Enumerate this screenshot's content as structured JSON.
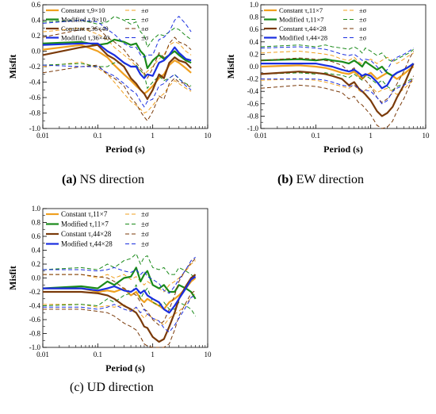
{
  "colors": {
    "constant_small": "#f0a020",
    "modified_small": "#1a8a1a",
    "constant_large": "#7a3a0a",
    "modified_large": "#1a2ee0"
  },
  "captions": [
    {
      "letter": "(a)",
      "text": " NS direction"
    },
    {
      "letter": "(b)",
      "text": " EW direction"
    },
    {
      "letter": "(c)",
      "text": " UD direction"
    }
  ],
  "chart_data": [
    {
      "type": "line",
      "panel": "a",
      "xlabel": "Period (s)",
      "ylabel": "Misfit",
      "xscale": "log",
      "xlim": [
        0.01,
        10
      ],
      "ylim": [
        -1.0,
        0.6
      ],
      "xticks": [
        "0.01",
        "0.1",
        "1",
        "10"
      ],
      "yticks": [
        "-1.0",
        "-0.8",
        "-0.6",
        "-0.4",
        "-0.2",
        "0.0",
        "0.2",
        "0.4",
        "0.6"
      ],
      "legend_position": "top-left",
      "legend": [
        {
          "label": "Constant τ,9×10",
          "sigma_label": "±σ",
          "color_key": "constant_small"
        },
        {
          "label": "Modified τ,9×10",
          "sigma_label": "±σ",
          "color_key": "modified_small"
        },
        {
          "label": "Constant τ,36×40",
          "sigma_label": "±σ",
          "color_key": "constant_large"
        },
        {
          "label": "Modified τ,36×40",
          "sigma_label": "±σ",
          "color_key": "modified_large"
        }
      ],
      "x": [
        0.01,
        0.05,
        0.1,
        0.15,
        0.2,
        0.3,
        0.4,
        0.5,
        0.6,
        0.7,
        0.8,
        1.0,
        1.3,
        1.6,
        2.0,
        2.5,
        3.0,
        4.0,
        5.0
      ],
      "series": [
        {
          "name": "Constant τ,9×10",
          "color_key": "constant_small",
          "mean": [
            0.02,
            0.08,
            0.0,
            -0.08,
            -0.18,
            -0.3,
            -0.38,
            -0.45,
            -0.5,
            -0.55,
            -0.52,
            -0.45,
            -0.35,
            -0.3,
            -0.18,
            -0.12,
            -0.15,
            -0.22,
            -0.28
          ],
          "upper": [
            0.25,
            0.3,
            0.22,
            0.15,
            0.05,
            -0.05,
            -0.12,
            -0.2,
            -0.25,
            -0.3,
            -0.26,
            -0.2,
            -0.1,
            -0.05,
            0.08,
            0.12,
            0.1,
            0.0,
            -0.05
          ],
          "lower": [
            -0.2,
            -0.14,
            -0.22,
            -0.3,
            -0.4,
            -0.55,
            -0.65,
            -0.7,
            -0.75,
            -0.8,
            -0.78,
            -0.7,
            -0.6,
            -0.55,
            -0.45,
            -0.38,
            -0.42,
            -0.48,
            -0.52
          ]
        },
        {
          "name": "Modified τ,9×10",
          "color_key": "modified_small",
          "mean": [
            0.1,
            0.12,
            0.08,
            0.1,
            0.15,
            0.12,
            0.08,
            0.1,
            0.0,
            -0.05,
            -0.22,
            -0.12,
            -0.05,
            -0.1,
            -0.05,
            0.0,
            -0.05,
            -0.12,
            -0.15
          ],
          "upper": [
            0.38,
            0.4,
            0.35,
            0.38,
            0.45,
            0.4,
            0.35,
            0.38,
            0.25,
            0.2,
            0.05,
            0.15,
            0.22,
            0.2,
            0.25,
            0.3,
            0.28,
            0.2,
            0.15
          ],
          "lower": [
            -0.18,
            -0.16,
            -0.2,
            -0.2,
            -0.15,
            -0.16,
            -0.2,
            -0.18,
            -0.25,
            -0.3,
            -0.48,
            -0.4,
            -0.32,
            -0.38,
            -0.35,
            -0.3,
            -0.36,
            -0.42,
            -0.45
          ]
        },
        {
          "name": "Constant τ,36×40",
          "color_key": "constant_large",
          "mean": [
            -0.05,
            0.05,
            0.08,
            -0.05,
            -0.1,
            -0.2,
            -0.35,
            -0.42,
            -0.5,
            -0.55,
            -0.62,
            -0.5,
            -0.3,
            -0.35,
            -0.15,
            -0.08,
            -0.12,
            -0.15,
            -0.22
          ],
          "upper": [
            0.18,
            0.28,
            0.3,
            0.18,
            0.12,
            0.02,
            -0.1,
            -0.15,
            -0.22,
            -0.28,
            -0.35,
            -0.22,
            -0.02,
            -0.08,
            0.1,
            0.18,
            0.12,
            0.08,
            0.02
          ],
          "lower": [
            -0.28,
            -0.2,
            -0.18,
            -0.3,
            -0.35,
            -0.45,
            -0.6,
            -0.68,
            -0.78,
            -0.85,
            -0.9,
            -0.78,
            -0.58,
            -0.62,
            -0.42,
            -0.35,
            -0.4,
            -0.42,
            -0.48
          ]
        },
        {
          "name": "Modified τ,36×40",
          "color_key": "modified_large",
          "mean": [
            0.08,
            0.1,
            0.1,
            0.0,
            -0.05,
            -0.15,
            -0.2,
            -0.2,
            -0.3,
            -0.35,
            -0.3,
            -0.32,
            -0.15,
            -0.12,
            -0.05,
            0.05,
            -0.02,
            -0.1,
            -0.12
          ],
          "upper": [
            0.36,
            0.4,
            0.38,
            0.28,
            0.22,
            0.1,
            0.05,
            0.05,
            -0.05,
            -0.08,
            -0.05,
            -0.05,
            0.15,
            0.18,
            0.25,
            0.4,
            0.45,
            0.35,
            0.25
          ],
          "lower": [
            -0.18,
            -0.2,
            -0.2,
            -0.28,
            -0.32,
            -0.42,
            -0.5,
            -0.55,
            -0.65,
            -0.72,
            -0.65,
            -0.62,
            -0.45,
            -0.42,
            -0.35,
            -0.3,
            -0.35,
            -0.45,
            -0.5
          ]
        }
      ]
    },
    {
      "type": "line",
      "panel": "b",
      "xlabel": "Period (s)",
      "ylabel": "Misfit",
      "xscale": "log",
      "xlim": [
        0.01,
        10
      ],
      "ylim": [
        -1.0,
        1.0
      ],
      "xticks": [
        "0.01",
        "0.1",
        "1",
        "10"
      ],
      "yticks": [
        "-1.0",
        "-0.8",
        "-0.6",
        "-0.4",
        "-0.2",
        "0.0",
        "0.2",
        "0.4",
        "0.6",
        "0.8",
        "1.0"
      ],
      "legend_position": "top-left",
      "legend": [
        {
          "label": "Constant τ,11×7",
          "sigma_label": "±σ",
          "color_key": "constant_small"
        },
        {
          "label": "Modified τ,11×7",
          "sigma_label": "±σ",
          "color_key": "modified_small"
        },
        {
          "label": "Constant τ,44×28",
          "sigma_label": "±σ",
          "color_key": "constant_large"
        },
        {
          "label": "Modified τ,44×28",
          "sigma_label": "±σ",
          "color_key": "modified_large"
        }
      ],
      "x": [
        0.01,
        0.05,
        0.1,
        0.15,
        0.2,
        0.3,
        0.4,
        0.5,
        0.6,
        0.7,
        0.8,
        1.0,
        1.3,
        1.6,
        2.0,
        2.5,
        3.0,
        4.0,
        5.0,
        6.0
      ],
      "series": [
        {
          "name": "Constant τ,11×7",
          "color_key": "constant_small",
          "mean": [
            0.0,
            0.02,
            0.0,
            -0.02,
            -0.05,
            -0.1,
            -0.12,
            -0.08,
            -0.15,
            -0.2,
            -0.15,
            -0.1,
            -0.2,
            -0.15,
            -0.1,
            -0.15,
            -0.2,
            -0.12,
            -0.05,
            0.0
          ],
          "upper": [
            0.22,
            0.25,
            0.22,
            0.2,
            0.18,
            0.12,
            0.1,
            0.15,
            0.08,
            0.04,
            0.08,
            0.12,
            0.05,
            0.1,
            0.15,
            0.1,
            0.05,
            0.12,
            0.18,
            0.22
          ],
          "lower": [
            -0.22,
            -0.2,
            -0.22,
            -0.25,
            -0.28,
            -0.32,
            -0.35,
            -0.3,
            -0.38,
            -0.42,
            -0.38,
            -0.32,
            -0.42,
            -0.38,
            -0.35,
            -0.4,
            -0.45,
            -0.36,
            -0.28,
            -0.22
          ]
        },
        {
          "name": "Modified τ,11×7",
          "color_key": "modified_small",
          "mean": [
            0.1,
            0.12,
            0.1,
            0.12,
            0.1,
            0.08,
            0.05,
            0.1,
            0.05,
            0.0,
            0.08,
            0.02,
            -0.05,
            0.0,
            -0.1,
            -0.15,
            -0.1,
            -0.05,
            0.0,
            0.05
          ],
          "upper": [
            0.32,
            0.35,
            0.32,
            0.35,
            0.32,
            0.3,
            0.28,
            0.32,
            0.28,
            0.22,
            0.3,
            0.25,
            0.18,
            0.22,
            0.12,
            0.08,
            0.12,
            0.18,
            0.22,
            0.28
          ],
          "lower": [
            -0.12,
            -0.1,
            -0.12,
            -0.1,
            -0.12,
            -0.14,
            -0.18,
            -0.12,
            -0.18,
            -0.22,
            -0.14,
            -0.2,
            -0.28,
            -0.22,
            -0.32,
            -0.38,
            -0.32,
            -0.28,
            -0.22,
            -0.18
          ]
        },
        {
          "name": "Constant τ,44×28",
          "color_key": "constant_large",
          "mean": [
            -0.12,
            -0.08,
            -0.1,
            -0.12,
            -0.15,
            -0.2,
            -0.3,
            -0.25,
            -0.35,
            -0.4,
            -0.45,
            -0.55,
            -0.72,
            -0.8,
            -0.75,
            -0.65,
            -0.5,
            -0.3,
            -0.1,
            0.05
          ],
          "upper": [
            0.1,
            0.14,
            0.12,
            0.1,
            0.08,
            0.02,
            -0.08,
            -0.02,
            -0.12,
            -0.18,
            -0.22,
            -0.32,
            -0.5,
            -0.58,
            -0.52,
            -0.42,
            -0.28,
            -0.08,
            0.12,
            0.25
          ],
          "lower": [
            -0.35,
            -0.3,
            -0.32,
            -0.35,
            -0.38,
            -0.42,
            -0.52,
            -0.48,
            -0.58,
            -0.62,
            -0.68,
            -0.78,
            -0.95,
            -1.0,
            -0.98,
            -0.88,
            -0.72,
            -0.52,
            -0.32,
            -0.15
          ]
        },
        {
          "name": "Modified τ,44×28",
          "color_key": "modified_large",
          "mean": [
            0.05,
            0.05,
            0.05,
            0.02,
            0.0,
            -0.05,
            -0.08,
            -0.05,
            -0.1,
            -0.15,
            -0.12,
            -0.15,
            -0.25,
            -0.35,
            -0.3,
            -0.15,
            -0.1,
            -0.05,
            0.0,
            0.05
          ],
          "upper": [
            0.3,
            0.32,
            0.3,
            0.28,
            0.25,
            0.2,
            0.18,
            0.2,
            0.15,
            0.1,
            0.12,
            0.1,
            0.0,
            -0.1,
            -0.05,
            0.1,
            0.15,
            0.2,
            0.25,
            0.3
          ],
          "lower": [
            -0.2,
            -0.2,
            -0.2,
            -0.22,
            -0.25,
            -0.3,
            -0.32,
            -0.3,
            -0.35,
            -0.4,
            -0.38,
            -0.4,
            -0.5,
            -0.6,
            -0.55,
            -0.4,
            -0.35,
            -0.3,
            -0.25,
            -0.2
          ]
        }
      ]
    },
    {
      "type": "line",
      "panel": "c",
      "xlabel": "Period (s)",
      "ylabel": "Misfit",
      "xscale": "log",
      "xlim": [
        0.01,
        10
      ],
      "ylim": [
        -1.0,
        1.0
      ],
      "xticks": [
        "0.01",
        "0.1",
        "1",
        "10"
      ],
      "yticks": [
        "-1.0",
        "-0.8",
        "-0.6",
        "-0.4",
        "-0.2",
        "0.0",
        "0.2",
        "0.4",
        "0.6",
        "0.8",
        "1.0"
      ],
      "legend_position": "top-left",
      "legend": [
        {
          "label": "Constant τ,11×7",
          "sigma_label": "±σ",
          "color_key": "constant_small"
        },
        {
          "label": "Modified τ,11×7",
          "sigma_label": "±σ",
          "color_key": "modified_small"
        },
        {
          "label": "Constant τ,44×28",
          "sigma_label": "±σ",
          "color_key": "constant_large"
        },
        {
          "label": "Modified τ,44×28",
          "sigma_label": "±σ",
          "color_key": "modified_large"
        }
      ],
      "x": [
        0.01,
        0.05,
        0.1,
        0.15,
        0.2,
        0.3,
        0.4,
        0.5,
        0.6,
        0.7,
        0.8,
        1.0,
        1.3,
        1.6,
        2.0,
        2.5,
        3.0,
        4.0,
        5.0,
        6.0
      ],
      "series": [
        {
          "name": "Constant τ,11×7",
          "color_key": "constant_small",
          "mean": [
            -0.15,
            -0.15,
            -0.2,
            -0.18,
            -0.2,
            -0.15,
            -0.25,
            -0.2,
            -0.3,
            -0.35,
            -0.3,
            -0.35,
            -0.4,
            -0.45,
            -0.35,
            -0.3,
            -0.25,
            -0.15,
            -0.05,
            0.0
          ],
          "upper": [
            0.05,
            0.05,
            0.0,
            0.05,
            0.0,
            0.05,
            -0.02,
            0.02,
            -0.05,
            -0.1,
            -0.05,
            -0.1,
            -0.15,
            -0.2,
            -0.1,
            -0.05,
            0.0,
            0.1,
            0.2,
            0.25
          ],
          "lower": [
            -0.38,
            -0.38,
            -0.42,
            -0.4,
            -0.42,
            -0.38,
            -0.48,
            -0.42,
            -0.52,
            -0.58,
            -0.52,
            -0.58,
            -0.62,
            -0.68,
            -0.58,
            -0.52,
            -0.48,
            -0.38,
            -0.28,
            -0.22
          ]
        },
        {
          "name": "Modified τ,11×7",
          "color_key": "modified_small",
          "mean": [
            -0.15,
            -0.12,
            -0.15,
            -0.05,
            -0.1,
            0.0,
            0.02,
            0.15,
            -0.05,
            0.05,
            0.1,
            -0.1,
            -0.15,
            -0.1,
            -0.2,
            -0.2,
            -0.1,
            -0.15,
            -0.2,
            -0.3
          ],
          "upper": [
            0.12,
            0.15,
            0.12,
            0.2,
            0.15,
            0.25,
            0.28,
            0.35,
            0.2,
            0.3,
            0.32,
            0.15,
            0.12,
            0.15,
            0.05,
            0.05,
            0.15,
            0.1,
            0.05,
            0.0
          ],
          "lower": [
            -0.4,
            -0.38,
            -0.4,
            -0.3,
            -0.35,
            -0.25,
            -0.22,
            -0.1,
            -0.3,
            -0.2,
            -0.15,
            -0.35,
            -0.4,
            -0.35,
            -0.45,
            -0.45,
            -0.35,
            -0.4,
            -0.45,
            -0.55
          ]
        },
        {
          "name": "Constant τ,44×28",
          "color_key": "constant_large",
          "mean": [
            -0.2,
            -0.2,
            -0.22,
            -0.25,
            -0.3,
            -0.4,
            -0.45,
            -0.5,
            -0.6,
            -0.7,
            -0.72,
            -0.85,
            -0.92,
            -0.88,
            -0.7,
            -0.5,
            -0.3,
            -0.12,
            0.0,
            0.05
          ],
          "upper": [
            0.05,
            0.05,
            0.02,
            0.0,
            -0.05,
            -0.15,
            -0.2,
            -0.25,
            -0.35,
            -0.45,
            -0.48,
            -0.6,
            -0.68,
            -0.62,
            -0.45,
            -0.25,
            -0.05,
            0.12,
            0.22,
            0.28
          ],
          "lower": [
            -0.45,
            -0.45,
            -0.48,
            -0.5,
            -0.55,
            -0.65,
            -0.7,
            -0.75,
            -0.85,
            -0.95,
            -0.98,
            -1.0,
            -1.0,
            -1.0,
            -0.95,
            -0.75,
            -0.55,
            -0.36,
            -0.22,
            -0.18
          ]
        },
        {
          "name": "Modified τ,44×28",
          "color_key": "modified_large",
          "mean": [
            -0.15,
            -0.15,
            -0.18,
            -0.15,
            -0.12,
            -0.18,
            -0.2,
            -0.15,
            -0.22,
            -0.18,
            -0.25,
            -0.3,
            -0.35,
            -0.45,
            -0.5,
            -0.4,
            -0.3,
            -0.15,
            -0.02,
            0.02
          ],
          "upper": [
            0.12,
            0.12,
            0.1,
            0.12,
            0.15,
            0.1,
            0.08,
            0.12,
            0.05,
            0.1,
            0.02,
            -0.02,
            -0.08,
            -0.18,
            -0.22,
            -0.12,
            -0.02,
            0.12,
            0.25,
            0.3
          ],
          "lower": [
            -0.42,
            -0.42,
            -0.45,
            -0.42,
            -0.38,
            -0.45,
            -0.48,
            -0.42,
            -0.5,
            -0.45,
            -0.52,
            -0.58,
            -0.62,
            -0.72,
            -0.78,
            -0.68,
            -0.58,
            -0.42,
            -0.28,
            -0.25
          ]
        }
      ]
    }
  ]
}
